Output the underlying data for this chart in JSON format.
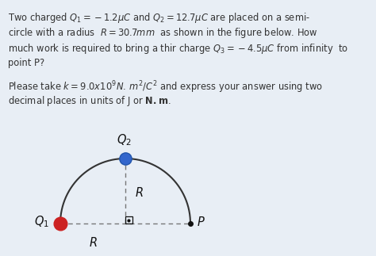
{
  "fig_bg": "#e8eef5",
  "text_bg": "#e8eef5",
  "diagram_bg": "#e8eef5",
  "text_color": "#333333",
  "q1_color": "#cc2222",
  "q2_color": "#3366cc",
  "center_color": "#111111",
  "p_color": "#111111",
  "line_color": "#333333",
  "dashed_color": "#777777",
  "line1": "Two charged $Q_1 = -1.2\\mu C$ and $Q_2 = 12.7\\mu C$ are placed on a semi-",
  "line2": "circle with a radius  $R = 30.7mm$  as shown in the figure below. How",
  "line3": "much work is required to bring a thir charge $Q_3 = -4.5\\mu C$ from infinity  to",
  "line4": "point P?",
  "line5": "Please take $k = 9.0x10^9 N.\\, m^2/C^2$ and express your answer using two",
  "line6": "decimal places in units of J or $\\mathbf{N.m}$.",
  "fontsize": 8.3
}
